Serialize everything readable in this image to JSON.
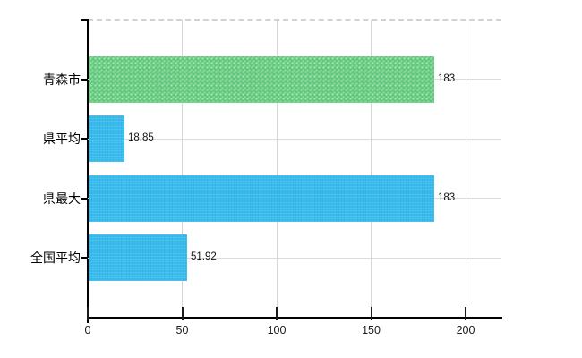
{
  "chart_data": {
    "type": "bar",
    "orientation": "horizontal",
    "title": "",
    "xlabel": "",
    "ylabel": "",
    "categories": [
      "青森市",
      "県平均",
      "県最大",
      "全国平均"
    ],
    "values": [
      183,
      18.85,
      183,
      51.92
    ],
    "value_labels": [
      "183",
      "18.85",
      "183",
      "51.92"
    ],
    "bar_color_keys": [
      "green",
      "blue",
      "blue",
      "blue"
    ],
    "colors": {
      "green": "#5ec87c",
      "blue": "#38bbed"
    },
    "xlim": [
      0,
      200
    ],
    "x_ticks": [
      0,
      50,
      100,
      150,
      200
    ],
    "x_tick_labels": [
      "0",
      "50",
      "100",
      "150",
      "200"
    ],
    "grid": "on",
    "legend": "none",
    "background": "#ffffff"
  }
}
